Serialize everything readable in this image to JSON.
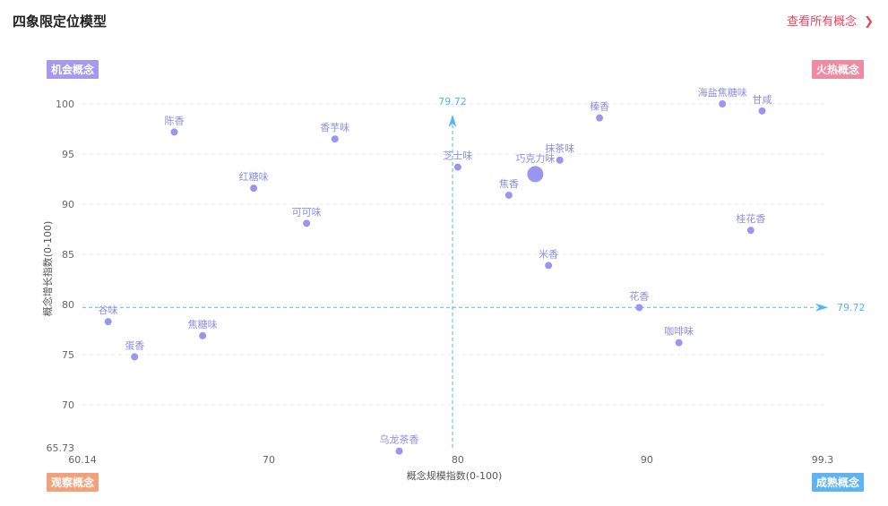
{
  "header": {
    "title": "四象限定位模型",
    "view_all": "查看所有概念"
  },
  "quadrants": {
    "top_left": {
      "label": "机会概念",
      "color": "#a59af0"
    },
    "top_right": {
      "label": "火热概念",
      "color": "#ef8aa0"
    },
    "bottom_left": {
      "label": "观察概念",
      "color": "#f2a27a"
    },
    "bottom_right": {
      "label": "成熟概念",
      "color": "#5fb3f3"
    }
  },
  "chart_data": {
    "type": "scatter",
    "title": "",
    "xlabel": "概念规模指数(0-100)",
    "ylabel": "概念增长指数(0-100)",
    "xlim": [
      60.14,
      99.3
    ],
    "ylim": [
      65.73,
      100
    ],
    "x_ticks": [
      {
        "value": 60.14,
        "label": "60.14"
      },
      {
        "value": 70,
        "label": "70"
      },
      {
        "value": 80,
        "label": "80"
      },
      {
        "value": 90,
        "label": "90"
      },
      {
        "value": 99.3,
        "label": "99.3"
      }
    ],
    "y_ticks": [
      {
        "value": 65.73,
        "label": "65.73"
      },
      {
        "value": 70,
        "label": "70"
      },
      {
        "value": 75,
        "label": "75"
      },
      {
        "value": 80,
        "label": "80"
      },
      {
        "value": 85,
        "label": "85"
      },
      {
        "value": 90,
        "label": "90"
      },
      {
        "value": 95,
        "label": "95"
      },
      {
        "value": 100,
        "label": "100"
      }
    ],
    "ref_x": {
      "value": 79.72,
      "label": "79.72"
    },
    "ref_y": {
      "value": 79.72,
      "label": "79.72"
    },
    "grid": true,
    "point_color": "#9b95f2",
    "ref_color": "#52b5f5",
    "points": [
      {
        "name": "陈香",
        "x": 65.0,
        "y": 97.2
      },
      {
        "name": "香芋味",
        "x": 73.5,
        "y": 96.5
      },
      {
        "name": "红糖味",
        "x": 69.2,
        "y": 91.6
      },
      {
        "name": "可可味",
        "x": 72.0,
        "y": 88.1
      },
      {
        "name": "谷味",
        "x": 61.5,
        "y": 78.3
      },
      {
        "name": "焦糖味",
        "x": 66.5,
        "y": 76.9
      },
      {
        "name": "蛋香",
        "x": 62.9,
        "y": 74.8
      },
      {
        "name": "乌龙茶香",
        "x": 76.9,
        "y": 65.4
      },
      {
        "name": "芝士味",
        "x": 80.0,
        "y": 93.7
      },
      {
        "name": "巧克力味",
        "x": 84.1,
        "y": 93.0,
        "big": true
      },
      {
        "name": "焦香",
        "x": 82.7,
        "y": 90.9
      },
      {
        "name": "抹茶味",
        "x": 85.4,
        "y": 94.4
      },
      {
        "name": "榛香",
        "x": 87.5,
        "y": 98.6
      },
      {
        "name": "海盐焦糖味",
        "x": 94.0,
        "y": 100.0
      },
      {
        "name": "甘咸",
        "x": 96.1,
        "y": 99.3
      },
      {
        "name": "桂花香",
        "x": 95.5,
        "y": 87.4
      },
      {
        "name": "米香",
        "x": 84.8,
        "y": 83.9
      },
      {
        "name": "花香",
        "x": 89.6,
        "y": 79.7
      },
      {
        "name": "咖啡味",
        "x": 91.7,
        "y": 76.2
      }
    ]
  }
}
